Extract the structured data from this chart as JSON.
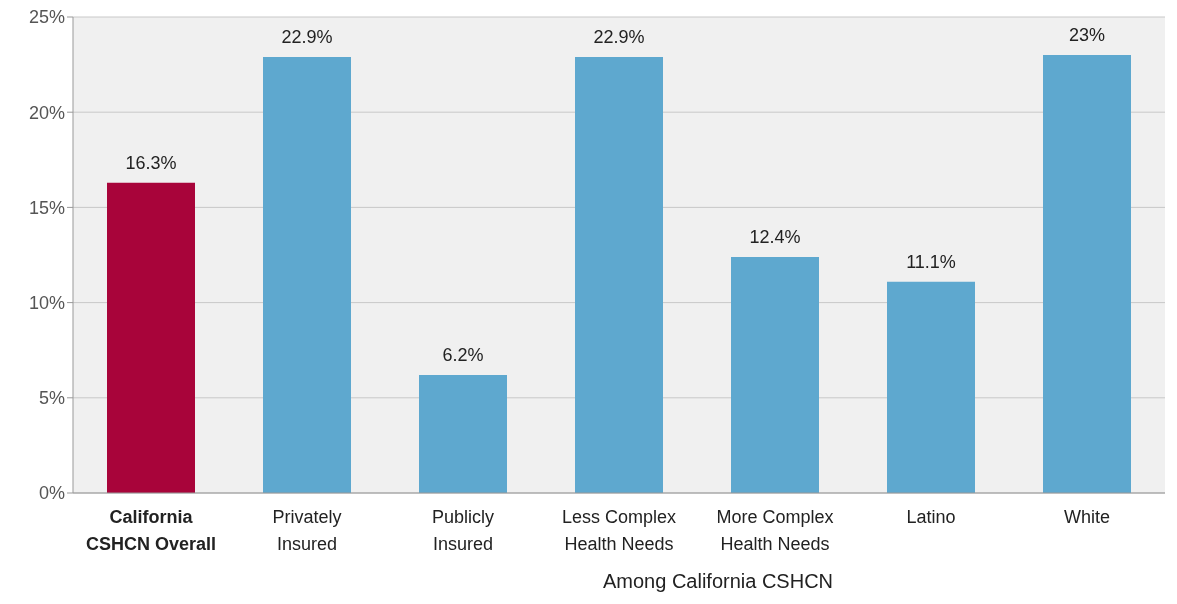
{
  "chart_data": {
    "type": "bar",
    "xlabel": "Among California CSHCN",
    "categories": [
      "California\nCSHCN Overall",
      "Privately\nInsured",
      "Publicly\nInsured",
      "Less Complex\nHealth Needs",
      "More Complex\nHealth Needs",
      "Latino",
      "White"
    ],
    "values": [
      16.3,
      22.9,
      6.2,
      22.9,
      12.4,
      11.1,
      23
    ],
    "colors": [
      "#a8043a",
      "#5ea8cf",
      "#5ea8cf",
      "#5ea8cf",
      "#5ea8cf",
      "#5ea8cf",
      "#5ea8cf"
    ],
    "value_labels": [
      "16.3%",
      "22.9%",
      "6.2%",
      "22.9%",
      "12.4%",
      "11.1%",
      "23%"
    ],
    "ylim": [
      0,
      25
    ],
    "yticks": [
      {
        "value": 0,
        "label": "0%"
      },
      {
        "value": 5,
        "label": "5%"
      },
      {
        "value": 10,
        "label": "10%"
      },
      {
        "value": 15,
        "label": "15%"
      },
      {
        "value": 20,
        "label": "20%"
      },
      {
        "value": 25,
        "label": "25%"
      }
    ],
    "grid": "y",
    "legend": false
  }
}
